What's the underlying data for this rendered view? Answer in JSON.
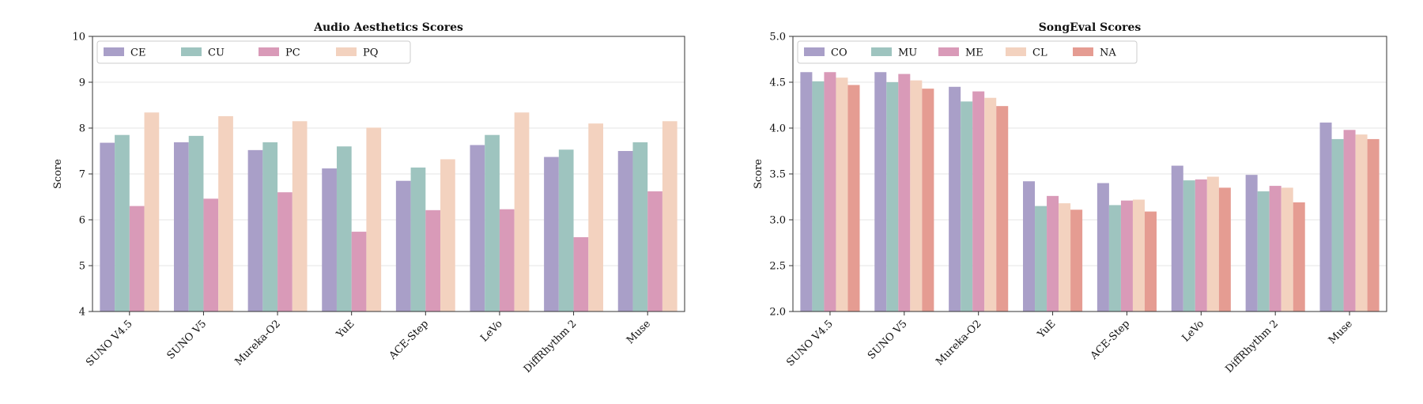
{
  "colors": {
    "CE": "#a99fc8",
    "CU": "#9ec4bf",
    "PC": "#d99ab8",
    "PQ": "#f3d2bf",
    "CO": "#a99fc8",
    "MU": "#9ec4bf",
    "ME": "#d99ab8",
    "CL": "#f3d2bf",
    "NA": "#e59c92"
  },
  "chart_data": [
    {
      "type": "bar",
      "title": "Audio Aesthetics Scores",
      "xlabel": "",
      "ylabel": "Score",
      "ylim": [
        4,
        10
      ],
      "yticks": [
        "4",
        "5",
        "6",
        "7",
        "8",
        "9",
        "10"
      ],
      "grid": true,
      "legend_position": "top-left",
      "categories": [
        "SUNO V4.5",
        "SUNO V5",
        "Mureka-O2",
        "YuE",
        "ACE-Step",
        "LeVo",
        "DiffRhythm 2",
        "Muse"
      ],
      "series": [
        {
          "name": "CE",
          "values": [
            7.68,
            7.69,
            7.52,
            7.12,
            6.85,
            7.63,
            7.37,
            7.5
          ]
        },
        {
          "name": "CU",
          "values": [
            7.85,
            7.83,
            7.69,
            7.6,
            7.14,
            7.85,
            7.53,
            7.69
          ]
        },
        {
          "name": "PC",
          "values": [
            6.3,
            6.46,
            6.6,
            5.74,
            6.21,
            6.23,
            5.62,
            6.62
          ]
        },
        {
          "name": "PQ",
          "values": [
            8.34,
            8.26,
            8.15,
            8.01,
            7.32,
            8.34,
            8.1,
            8.15
          ]
        }
      ]
    },
    {
      "type": "bar",
      "title": "SongEval Scores",
      "xlabel": "",
      "ylabel": "Score",
      "ylim": [
        2.0,
        5.0
      ],
      "yticks": [
        "2.0",
        "2.5",
        "3.0",
        "3.5",
        "4.0",
        "4.5",
        "5.0"
      ],
      "grid": true,
      "legend_position": "top-left",
      "categories": [
        "SUNO V4.5",
        "SUNO V5",
        "Mureka-O2",
        "YuE",
        "ACE-Step",
        "LeVo",
        "DiffRhythm 2",
        "Muse"
      ],
      "series": [
        {
          "name": "CO",
          "values": [
            4.61,
            4.61,
            4.45,
            3.42,
            3.4,
            3.59,
            3.49,
            4.06
          ]
        },
        {
          "name": "MU",
          "values": [
            4.51,
            4.5,
            4.29,
            3.15,
            3.16,
            3.43,
            3.31,
            3.88
          ]
        },
        {
          "name": "ME",
          "values": [
            4.61,
            4.59,
            4.4,
            3.26,
            3.21,
            3.44,
            3.37,
            3.98
          ]
        },
        {
          "name": "CL",
          "values": [
            4.55,
            4.52,
            4.33,
            3.18,
            3.22,
            3.47,
            3.35,
            3.93
          ]
        },
        {
          "name": "NA",
          "values": [
            4.47,
            4.43,
            4.24,
            3.11,
            3.09,
            3.35,
            3.19,
            3.88
          ]
        }
      ]
    }
  ]
}
